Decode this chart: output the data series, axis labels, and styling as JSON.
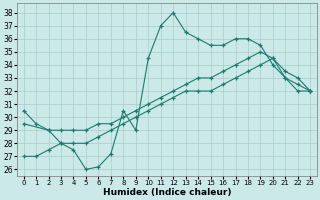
{
  "xlabel": "Humidex (Indice chaleur)",
  "xlim": [
    -0.5,
    23.5
  ],
  "ylim": [
    25.5,
    38.7
  ],
  "yticks": [
    26,
    27,
    28,
    29,
    30,
    31,
    32,
    33,
    34,
    35,
    36,
    37,
    38
  ],
  "xticks": [
    0,
    1,
    2,
    3,
    4,
    5,
    6,
    7,
    8,
    9,
    10,
    11,
    12,
    13,
    14,
    15,
    16,
    17,
    18,
    19,
    20,
    21,
    22,
    23
  ],
  "bg_color": "#cce9e9",
  "line_color": "#1a7a6e",
  "grid_color": "#aacccc",
  "line1_x": [
    0,
    1,
    2,
    3,
    4,
    5,
    6,
    7,
    8,
    9,
    10,
    11,
    12,
    13,
    14,
    15,
    16,
    17,
    18,
    19,
    20,
    21,
    22,
    23
  ],
  "line1_y": [
    30.5,
    29.5,
    29.0,
    28.0,
    27.5,
    26.0,
    26.2,
    27.2,
    30.5,
    29.0,
    34.5,
    37.0,
    38.0,
    36.5,
    36.0,
    35.5,
    35.5,
    36.0,
    36.0,
    35.5,
    34.0,
    33.0,
    32.5,
    32.0
  ],
  "line2_x": [
    0,
    2,
    3,
    4,
    5,
    6,
    7,
    8,
    9,
    10,
    11,
    12,
    13,
    14,
    15,
    16,
    17,
    18,
    19,
    20,
    21,
    22,
    23
  ],
  "line2_y": [
    29.5,
    29.0,
    29.0,
    29.0,
    29.0,
    29.5,
    29.5,
    30.0,
    30.5,
    31.0,
    31.5,
    32.0,
    32.5,
    33.0,
    33.0,
    33.5,
    34.0,
    34.5,
    35.0,
    34.5,
    33.5,
    33.0,
    32.0
  ],
  "line3_x": [
    0,
    1,
    2,
    3,
    4,
    5,
    6,
    7,
    8,
    9,
    10,
    11,
    12,
    13,
    14,
    15,
    16,
    17,
    18,
    19,
    20,
    21,
    22,
    23
  ],
  "line3_y": [
    27.0,
    27.0,
    27.5,
    28.0,
    28.0,
    28.0,
    28.5,
    29.0,
    29.5,
    30.0,
    30.5,
    31.0,
    31.5,
    32.0,
    32.0,
    32.0,
    32.5,
    33.0,
    33.5,
    34.0,
    34.5,
    33.0,
    32.0,
    32.0
  ]
}
